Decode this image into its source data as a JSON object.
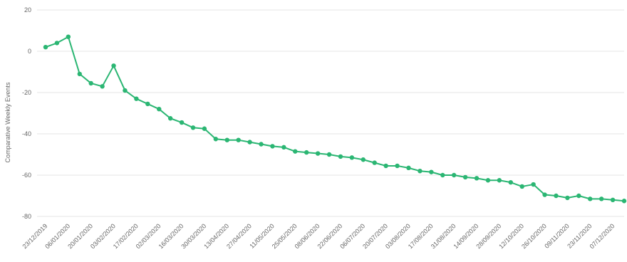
{
  "chart_data": {
    "type": "line",
    "title": "",
    "xlabel": "",
    "ylabel": "Comparative Weekly Events",
    "ylim": [
      -80,
      20
    ],
    "yticks": [
      20,
      0,
      -20,
      -40,
      -60,
      -80
    ],
    "grid": true,
    "legend": "none",
    "color": "#2bb673",
    "x_tick_labels": [
      "23/12/2019",
      "06/01/2020",
      "20/01/2020",
      "03/02/2020",
      "17/02/2020",
      "02/03/2020",
      "16/03/2020",
      "30/03/2020",
      "13/04/2020",
      "27/04/2020",
      "11/05/2020",
      "25/05/2020",
      "08/06/2020",
      "22/06/2020",
      "06/07/2020",
      "20/07/2020",
      "03/08/2020",
      "17/08/2020",
      "31/08/2020",
      "14/09/2020",
      "28/09/2020",
      "12/10/2020",
      "26/10/2020",
      "09/11/2020",
      "23/11/2020",
      "07/12/2020"
    ],
    "series": [
      {
        "x": [
          "23/12/2019",
          "30/12/2019",
          "06/01/2020",
          "13/01/2020",
          "20/01/2020",
          "27/01/2020",
          "03/02/2020",
          "10/02/2020",
          "17/02/2020",
          "24/02/2020",
          "02/03/2020",
          "09/03/2020",
          "16/03/2020",
          "23/03/2020",
          "30/03/2020",
          "06/04/2020",
          "13/04/2020",
          "20/04/2020",
          "27/04/2020",
          "04/05/2020",
          "11/05/2020",
          "18/05/2020",
          "25/05/2020",
          "01/06/2020",
          "08/06/2020",
          "15/06/2020",
          "22/06/2020",
          "29/06/2020",
          "06/07/2020",
          "13/07/2020",
          "20/07/2020",
          "27/07/2020",
          "03/08/2020",
          "10/08/2020",
          "17/08/2020",
          "24/08/2020",
          "31/08/2020",
          "07/09/2020",
          "14/09/2020",
          "21/09/2020",
          "28/09/2020",
          "05/10/2020",
          "12/10/2020",
          "19/10/2020",
          "26/10/2020",
          "02/11/2020",
          "09/11/2020",
          "16/11/2020",
          "23/11/2020",
          "30/11/2020",
          "07/12/2020",
          "14/12/2020"
        ],
        "values": [
          2,
          4,
          7,
          -11,
          -15.5,
          -17,
          -7,
          -19,
          -23,
          -25.5,
          -28,
          -32.5,
          -34.5,
          -37,
          -37.5,
          -42.5,
          -43,
          -43,
          -44,
          -45,
          -46,
          -46.5,
          -48.5,
          -49,
          -49.5,
          -50,
          -51,
          -51.5,
          -52.5,
          -54,
          -55.5,
          -55.5,
          -56.5,
          -58,
          -58.5,
          -60,
          -60,
          -61,
          -61.5,
          -62.5,
          -62.5,
          -63.5,
          -65.5,
          -64.5,
          -69.5,
          -70,
          -71,
          -70,
          -71.5,
          -71.5,
          -72,
          -72.5
        ]
      }
    ]
  }
}
